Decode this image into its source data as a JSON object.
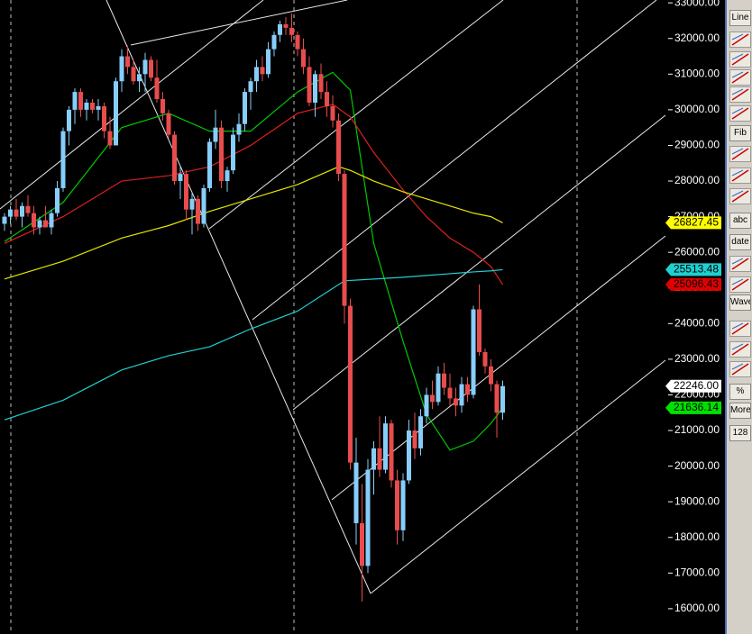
{
  "chart_data": {
    "type": "candlestick",
    "ylim": [
      15290,
      33080
    ],
    "yticks": [
      {
        "value": 33000,
        "label": "33000.00"
      },
      {
        "value": 32000,
        "label": "32000.00"
      },
      {
        "value": 31000,
        "label": "31000.00"
      },
      {
        "value": 30000,
        "label": "30000.00"
      },
      {
        "value": 29000,
        "label": "29000.00"
      },
      {
        "value": 28000,
        "label": "28000.00"
      },
      {
        "value": 27000,
        "label": "27000.00"
      },
      {
        "value": 26000,
        "label": "26000.00"
      },
      {
        "value": 25000,
        "label": "25000.00"
      },
      {
        "value": 24000,
        "label": "24000.00"
      },
      {
        "value": 23000,
        "label": "23000.00"
      },
      {
        "value": 22000,
        "label": "22000.00"
      },
      {
        "value": 21000,
        "label": "21000.00"
      },
      {
        "value": 20000,
        "label": "20000.00"
      },
      {
        "value": 19000,
        "label": "19000.00"
      },
      {
        "value": 18000,
        "label": "18000.00"
      },
      {
        "value": 17000,
        "label": "17000.00"
      },
      {
        "value": 16000,
        "label": "16000.00"
      }
    ],
    "up_color": "#87cefa",
    "down_color": "#e84c4c",
    "ohlc": [
      [
        26800,
        27100,
        26600,
        27000
      ],
      [
        27000,
        27300,
        26800,
        27200
      ],
      [
        27200,
        27500,
        26900,
        27000
      ],
      [
        27000,
        27400,
        26700,
        27300
      ],
      [
        27300,
        27600,
        27000,
        27100
      ],
      [
        27100,
        27300,
        26500,
        26700
      ],
      [
        26700,
        27000,
        26500,
        26900
      ],
      [
        26900,
        27300,
        26700,
        26700
      ],
      [
        26700,
        27200,
        26500,
        27100
      ],
      [
        27100,
        28000,
        27000,
        27800
      ],
      [
        27800,
        29500,
        27700,
        29400
      ],
      [
        29400,
        30100,
        29000,
        30000
      ],
      [
        30000,
        30600,
        29600,
        30500
      ],
      [
        30500,
        30600,
        29800,
        30000
      ],
      [
        30000,
        30300,
        29700,
        30200
      ],
      [
        30200,
        30300,
        29900,
        30000
      ],
      [
        30000,
        30300,
        29700,
        30100
      ],
      [
        30100,
        30200,
        29200,
        29400
      ],
      [
        29400,
        29800,
        28900,
        29000
      ],
      [
        29000,
        30900,
        29000,
        30800
      ],
      [
        30800,
        31700,
        30500,
        31500
      ],
      [
        31500,
        31800,
        31000,
        31200
      ],
      [
        31200,
        31400,
        30700,
        30800
      ],
      [
        30800,
        31200,
        30500,
        31000
      ],
      [
        31000,
        31600,
        30500,
        31400
      ],
      [
        31400,
        31500,
        30800,
        30900
      ],
      [
        30900,
        31400,
        30200,
        30300
      ],
      [
        30300,
        30500,
        29700,
        29900
      ],
      [
        29900,
        30000,
        29200,
        29300
      ],
      [
        29300,
        29400,
        27900,
        28000
      ],
      [
        28000,
        28400,
        27500,
        28200
      ],
      [
        28200,
        28300,
        26900,
        27200
      ],
      [
        27200,
        27700,
        26500,
        27500
      ],
      [
        27500,
        27600,
        26600,
        26800
      ],
      [
        26800,
        27900,
        26700,
        27800
      ],
      [
        27800,
        29200,
        27700,
        29100
      ],
      [
        29100,
        30000,
        28900,
        29500
      ],
      [
        29500,
        29700,
        27800,
        28000
      ],
      [
        28000,
        28400,
        27700,
        28300
      ],
      [
        28300,
        29500,
        28200,
        29300
      ],
      [
        29300,
        29900,
        29100,
        29600
      ],
      [
        29600,
        30600,
        29400,
        30500
      ],
      [
        30500,
        30900,
        30000,
        30800
      ],
      [
        30800,
        31400,
        30500,
        31200
      ],
      [
        31200,
        31500,
        30800,
        31000
      ],
      [
        31000,
        31900,
        30900,
        31700
      ],
      [
        31700,
        32200,
        31500,
        32100
      ],
      [
        32100,
        32500,
        31900,
        32400
      ],
      [
        32400,
        32600,
        32100,
        32300
      ],
      [
        32300,
        32700,
        31900,
        32100
      ],
      [
        32100,
        32200,
        31500,
        31700
      ],
      [
        31700,
        32000,
        31000,
        31200
      ],
      [
        31200,
        31500,
        30100,
        30200
      ],
      [
        30200,
        31100,
        29800,
        31000
      ],
      [
        31000,
        31300,
        30300,
        30500
      ],
      [
        30500,
        30800,
        29800,
        30100
      ],
      [
        30100,
        30400,
        29500,
        29700
      ],
      [
        29700,
        29900,
        28000,
        28200
      ],
      [
        28200,
        28300,
        24000,
        24500
      ],
      [
        24500,
        24700,
        19900,
        20100
      ],
      [
        18400,
        20800,
        17800,
        20100
      ],
      [
        18400,
        19500,
        16200,
        17200
      ],
      [
        17200,
        20200,
        17000,
        19900
      ],
      [
        19900,
        20700,
        19200,
        20500
      ],
      [
        20500,
        21400,
        19700,
        19900
      ],
      [
        19900,
        21400,
        19800,
        21200
      ],
      [
        21200,
        21300,
        19400,
        19600
      ],
      [
        19600,
        19900,
        17800,
        18200
      ],
      [
        18200,
        19800,
        17900,
        19600
      ],
      [
        19600,
        21300,
        19500,
        21000
      ],
      [
        21000,
        21500,
        20200,
        20500
      ],
      [
        20500,
        21600,
        20300,
        21400
      ],
      [
        21400,
        22200,
        21200,
        22000
      ],
      [
        22000,
        22400,
        21600,
        21800
      ],
      [
        21800,
        22800,
        21700,
        22600
      ],
      [
        22600,
        22900,
        22000,
        22200
      ],
      [
        22200,
        22600,
        21700,
        21900
      ],
      [
        21900,
        22200,
        21400,
        21700
      ],
      [
        21700,
        22500,
        21500,
        22300
      ],
      [
        22300,
        22500,
        21800,
        22000
      ],
      [
        22000,
        24500,
        21900,
        24400
      ],
      [
        24400,
        25100,
        23100,
        23200
      ],
      [
        23200,
        23300,
        22600,
        22800
      ],
      [
        22800,
        23000,
        22100,
        22300
      ],
      [
        22300,
        22400,
        20800,
        21500
      ],
      [
        21500,
        22400,
        21300,
        22246
      ]
    ],
    "moving_averages": [
      {
        "color": "#00c800",
        "x": [
          0,
          10,
          20,
          28,
          35,
          42,
          50,
          56,
          59,
          63,
          68,
          72,
          76,
          80,
          83,
          85
        ],
        "values": [
          26300,
          27400,
          29500,
          29900,
          29400,
          29400,
          30500,
          31050,
          30550,
          26250,
          23500,
          21450,
          20450,
          20700,
          21200,
          21636.14
        ]
      },
      {
        "color": "#dc2020",
        "x": [
          0,
          10,
          20,
          28,
          35,
          42,
          50,
          56,
          59,
          63,
          68,
          72,
          76,
          80,
          83,
          85
        ],
        "values": [
          26250,
          27000,
          28000,
          28150,
          28400,
          29000,
          29900,
          30150,
          29800,
          28800,
          27750,
          27000,
          26400,
          26000,
          25600,
          25096.43
        ]
      },
      {
        "color": "#e6e600",
        "x": [
          0,
          10,
          20,
          28,
          35,
          42,
          50,
          57,
          59,
          63,
          68,
          72,
          76,
          80,
          83,
          85
        ],
        "values": [
          25250,
          25750,
          26400,
          26750,
          27150,
          27500,
          27900,
          28400,
          28300,
          28000,
          27700,
          27500,
          27300,
          27100,
          27000,
          26827.45
        ]
      },
      {
        "color": "#20d0d0",
        "x": [
          0,
          10,
          20,
          28,
          35,
          42,
          50,
          58,
          63,
          68,
          72,
          76,
          80,
          83,
          85
        ],
        "values": [
          21300,
          21850,
          22700,
          23100,
          23350,
          23850,
          24350,
          25200,
          25250,
          25300,
          25350,
          25400,
          25450,
          25480,
          25513.48
        ]
      }
    ],
    "price_labels": [
      {
        "value": 26827.45,
        "color": "#ffff00",
        "text_color": "#000000"
      },
      {
        "value": 25513.48,
        "color": "#20d0d0",
        "text_color": "#000000"
      },
      {
        "value": 25096.43,
        "color": "#e00000",
        "text_color": "#000000"
      },
      {
        "value": 22246,
        "label": "22246.00",
        "color": "#ffffff",
        "text_color": "#000000"
      },
      {
        "value": 21636.14,
        "color": "#00e000",
        "text_color": "#000000"
      }
    ]
  },
  "toolbar": {
    "buttons": [
      "Line",
      "Fib",
      "abc",
      "date",
      "Wave",
      "%",
      "More",
      "128"
    ]
  }
}
